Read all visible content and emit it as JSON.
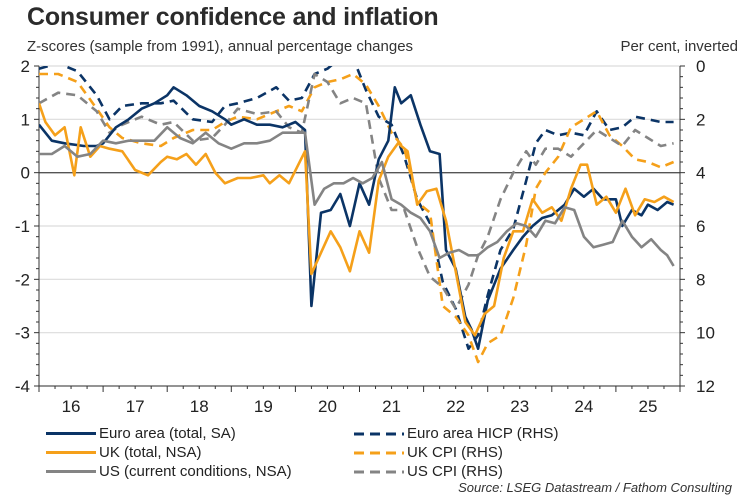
{
  "header": {
    "title": "Consumer confidence and inflation",
    "subtitle": "Z-scores (sample from 1991), annual percentage changes",
    "rhs_label": "Per cent, inverted"
  },
  "source": "Source: LSEG Datastream / Fathom Consulting",
  "colors": {
    "euro": "#0b3466",
    "uk": "#f5a01a",
    "us": "#848484",
    "axis": "#333333",
    "grid": "#dcdcdc"
  },
  "chart_data": {
    "type": "line",
    "title": "Consumer confidence and inflation",
    "subtitle": "Z-scores (sample from 1991), annual percentage changes",
    "xlabel": "",
    "ylabel_left": "Z-score",
    "ylabel_right": "Per cent, inverted",
    "x_range": [
      2016.0,
      2026.0
    ],
    "x_ticks": [
      {
        "value": 2016.5,
        "label": "16"
      },
      {
        "value": 2017.5,
        "label": "17"
      },
      {
        "value": 2018.5,
        "label": "18"
      },
      {
        "value": 2019.5,
        "label": "19"
      },
      {
        "value": 2020.5,
        "label": "20"
      },
      {
        "value": 2021.5,
        "label": "21"
      },
      {
        "value": 2022.5,
        "label": "22"
      },
      {
        "value": 2023.5,
        "label": "23"
      },
      {
        "value": 2024.5,
        "label": "24"
      },
      {
        "value": 2025.5,
        "label": "25"
      }
    ],
    "ylim_left": [
      -4,
      2
    ],
    "y_ticks_left": [
      "-4",
      "-3",
      "-2",
      "-1",
      "0",
      "1",
      "2"
    ],
    "ylim_right": [
      12,
      0
    ],
    "y_ticks_right": [
      "12",
      "10",
      "8",
      "6",
      "4",
      "2",
      "0"
    ],
    "right_axis_inverted": true,
    "grid": true,
    "legend_position": "bottom",
    "series": [
      {
        "name": "Euro area (total, SA)",
        "axis": "left",
        "style": "solid",
        "color_key": "euro",
        "x": [
          2016.0,
          2016.2,
          2016.4,
          2016.7,
          2016.9,
          2017.0,
          2017.2,
          2017.4,
          2017.6,
          2017.8,
          2018.0,
          2018.1,
          2018.3,
          2018.5,
          2018.7,
          2018.9,
          2019.0,
          2019.2,
          2019.4,
          2019.6,
          2019.8,
          2020.0,
          2020.15,
          2020.25,
          2020.4,
          2020.55,
          2020.7,
          2020.85,
          2021.0,
          2021.15,
          2021.3,
          2021.45,
          2021.55,
          2021.65,
          2021.8,
          2021.95,
          2022.1,
          2022.25,
          2022.35,
          2022.5,
          2022.65,
          2022.75,
          2022.85,
          2023.0,
          2023.2,
          2023.4,
          2023.55,
          2023.7,
          2023.85,
          2024.0,
          2024.2,
          2024.35,
          2024.5,
          2024.65,
          2024.8,
          2025.0,
          2025.1,
          2025.25,
          2025.4,
          2025.5,
          2025.65,
          2025.8,
          2025.9
        ],
        "values": [
          0.9,
          0.6,
          0.55,
          0.5,
          0.5,
          0.55,
          0.85,
          1.0,
          1.2,
          1.3,
          1.45,
          1.6,
          1.45,
          1.25,
          1.15,
          1.0,
          0.9,
          1.0,
          0.9,
          0.9,
          0.85,
          0.95,
          0.8,
          -2.5,
          -0.75,
          -0.7,
          -0.4,
          -1.0,
          -0.2,
          -0.6,
          0.25,
          0.6,
          1.6,
          1.3,
          1.45,
          0.9,
          0.4,
          0.35,
          -1.45,
          -1.8,
          -2.7,
          -2.95,
          -3.3,
          -2.4,
          -1.8,
          -1.45,
          -1.2,
          -1.0,
          -0.85,
          -0.8,
          -0.6,
          -0.3,
          -0.45,
          -0.3,
          -0.5,
          -0.5,
          -1.0,
          -0.7,
          -0.8,
          -0.6,
          -0.7,
          -0.55,
          -0.6
        ]
      },
      {
        "name": "UK (total, NSA)",
        "axis": "left",
        "style": "solid",
        "color_key": "uk",
        "x": [
          2016.0,
          2016.1,
          2016.25,
          2016.4,
          2016.55,
          2016.65,
          2016.8,
          2016.95,
          2017.1,
          2017.3,
          2017.5,
          2017.7,
          2017.9,
          2018.0,
          2018.15,
          2018.3,
          2018.45,
          2018.6,
          2018.75,
          2018.9,
          2019.1,
          2019.3,
          2019.5,
          2019.6,
          2019.75,
          2019.9,
          2020.15,
          2020.25,
          2020.4,
          2020.55,
          2020.7,
          2020.85,
          2021.0,
          2021.15,
          2021.3,
          2021.45,
          2021.6,
          2021.75,
          2021.9,
          2022.05,
          2022.2,
          2022.35,
          2022.5,
          2022.65,
          2022.8,
          2022.95,
          2023.1,
          2023.25,
          2023.4,
          2023.55,
          2023.7,
          2023.85,
          2024.0,
          2024.15,
          2024.3,
          2024.45,
          2024.55,
          2024.7,
          2024.85,
          2025.0,
          2025.15,
          2025.3,
          2025.45,
          2025.6,
          2025.75,
          2025.9
        ],
        "values": [
          1.3,
          0.95,
          0.7,
          0.85,
          -0.05,
          0.85,
          0.3,
          0.5,
          0.45,
          0.4,
          0.05,
          -0.05,
          0.2,
          0.3,
          0.25,
          0.35,
          0.15,
          0.35,
          0.0,
          -0.2,
          -0.1,
          -0.1,
          -0.05,
          -0.2,
          -0.05,
          -0.2,
          0.4,
          -1.9,
          -1.5,
          -1.1,
          -1.4,
          -1.85,
          -1.1,
          -1.5,
          -0.15,
          0.3,
          0.55,
          0.4,
          -0.6,
          -0.35,
          -0.3,
          -0.9,
          -1.85,
          -2.8,
          -3.05,
          -2.65,
          -2.5,
          -1.6,
          -1.1,
          -1.1,
          -0.5,
          -0.75,
          -0.65,
          -0.9,
          -0.3,
          0.15,
          0.15,
          -0.6,
          -0.45,
          -0.75,
          -0.3,
          -0.8,
          -0.5,
          -0.55,
          -0.45,
          -0.55
        ]
      },
      {
        "name": "US (current conditions, NSA)",
        "axis": "left",
        "style": "solid",
        "color_key": "us",
        "x": [
          2016.0,
          2016.2,
          2016.4,
          2016.6,
          2016.8,
          2017.0,
          2017.2,
          2017.4,
          2017.6,
          2017.8,
          2018.0,
          2018.2,
          2018.4,
          2018.6,
          2018.8,
          2019.0,
          2019.2,
          2019.4,
          2019.6,
          2019.8,
          2020.0,
          2020.15,
          2020.3,
          2020.45,
          2020.6,
          2020.75,
          2020.9,
          2021.05,
          2021.2,
          2021.35,
          2021.5,
          2021.65,
          2021.8,
          2021.95,
          2022.1,
          2022.25,
          2022.4,
          2022.55,
          2022.7,
          2022.85,
          2023.0,
          2023.15,
          2023.3,
          2023.45,
          2023.6,
          2023.75,
          2023.9,
          2024.05,
          2024.2,
          2024.35,
          2024.5,
          2024.65,
          2024.8,
          2024.95,
          2025.1,
          2025.25,
          2025.4,
          2025.55,
          2025.7,
          2025.8,
          2025.9
        ],
        "values": [
          0.35,
          0.35,
          0.5,
          0.3,
          0.35,
          0.6,
          0.55,
          0.6,
          0.6,
          0.6,
          0.85,
          0.65,
          0.55,
          0.75,
          0.55,
          0.45,
          0.55,
          0.55,
          0.6,
          0.75,
          0.75,
          0.75,
          -0.6,
          -0.3,
          -0.2,
          -0.2,
          -0.1,
          -0.2,
          -0.1,
          0.2,
          -0.5,
          -0.6,
          -0.75,
          -0.85,
          -1.1,
          -1.6,
          -1.5,
          -1.45,
          -1.55,
          -1.55,
          -1.4,
          -1.3,
          -1.1,
          -0.95,
          -1.0,
          -1.2,
          -0.9,
          -0.95,
          -0.65,
          -0.7,
          -1.2,
          -1.4,
          -1.35,
          -1.3,
          -0.9,
          -1.2,
          -1.4,
          -1.25,
          -1.45,
          -1.55,
          -1.75
        ]
      },
      {
        "name": "Euro area HICP (RHS)",
        "axis": "right",
        "style": "dashed",
        "color_key": "euro",
        "x": [
          2016.0,
          2016.3,
          2016.6,
          2016.9,
          2017.1,
          2017.3,
          2017.6,
          2017.9,
          2018.1,
          2018.4,
          2018.7,
          2018.9,
          2019.1,
          2019.4,
          2019.7,
          2019.9,
          2020.1,
          2020.3,
          2020.5,
          2020.7,
          2020.9,
          2021.1,
          2021.3,
          2021.5,
          2021.7,
          2021.9,
          2022.1,
          2022.3,
          2022.5,
          2022.7,
          2022.85,
          2023.0,
          2023.2,
          2023.4,
          2023.6,
          2023.75,
          2023.9,
          2024.1,
          2024.3,
          2024.5,
          2024.7,
          2024.9,
          2025.1,
          2025.3,
          2025.5,
          2025.7,
          2025.9
        ],
        "values": [
          0.1,
          -0.1,
          0.2,
          1.1,
          2.0,
          1.5,
          1.4,
          1.4,
          1.3,
          2.0,
          2.1,
          1.5,
          1.4,
          1.2,
          0.8,
          1.3,
          1.2,
          0.3,
          0.1,
          -0.3,
          -0.3,
          0.9,
          1.9,
          2.2,
          3.4,
          5.0,
          5.9,
          8.1,
          9.1,
          10.6,
          10.1,
          8.6,
          6.9,
          6.1,
          4.3,
          2.9,
          2.4,
          2.6,
          2.5,
          2.6,
          1.7,
          2.4,
          2.3,
          1.9,
          2.0,
          2.1,
          2.1
        ]
      },
      {
        "name": "UK CPI (RHS)",
        "axis": "right",
        "style": "dashed",
        "color_key": "uk",
        "x": [
          2016.0,
          2016.3,
          2016.6,
          2016.9,
          2017.1,
          2017.3,
          2017.6,
          2017.9,
          2018.1,
          2018.4,
          2018.7,
          2018.9,
          2019.1,
          2019.4,
          2019.7,
          2019.9,
          2020.1,
          2020.3,
          2020.5,
          2020.7,
          2020.9,
          2021.1,
          2021.3,
          2021.5,
          2021.7,
          2021.9,
          2022.1,
          2022.3,
          2022.5,
          2022.7,
          2022.85,
          2023.0,
          2023.2,
          2023.4,
          2023.6,
          2023.75,
          2023.9,
          2024.1,
          2024.3,
          2024.5,
          2024.7,
          2024.9,
          2025.1,
          2025.3,
          2025.5,
          2025.7,
          2025.9
        ],
        "values": [
          0.3,
          0.3,
          0.6,
          1.6,
          2.3,
          2.7,
          2.9,
          3.0,
          2.7,
          2.4,
          2.4,
          2.1,
          1.9,
          2.0,
          1.7,
          1.5,
          1.7,
          0.8,
          0.6,
          0.5,
          0.3,
          0.7,
          1.5,
          2.5,
          3.1,
          5.1,
          5.5,
          9.0,
          9.4,
          10.1,
          11.1,
          10.4,
          10.1,
          8.7,
          6.7,
          4.6,
          4.0,
          3.4,
          2.3,
          2.0,
          1.7,
          2.6,
          3.0,
          3.5,
          3.6,
          3.8,
          3.6
        ]
      },
      {
        "name": "US CPI (RHS)",
        "axis": "right",
        "style": "dashed",
        "color_key": "us",
        "x": [
          2016.0,
          2016.3,
          2016.6,
          2016.9,
          2017.1,
          2017.3,
          2017.6,
          2017.9,
          2018.1,
          2018.4,
          2018.7,
          2018.9,
          2019.1,
          2019.4,
          2019.7,
          2019.9,
          2020.1,
          2020.3,
          2020.5,
          2020.7,
          2020.9,
          2021.1,
          2021.3,
          2021.5,
          2021.7,
          2021.9,
          2022.1,
          2022.3,
          2022.5,
          2022.7,
          2022.85,
          2023.0,
          2023.2,
          2023.4,
          2023.6,
          2023.75,
          2023.9,
          2024.1,
          2024.3,
          2024.5,
          2024.7,
          2024.9,
          2025.1,
          2025.3,
          2025.5,
          2025.7,
          2025.9
        ],
        "values": [
          1.4,
          1.0,
          1.1,
          1.7,
          2.5,
          2.2,
          1.9,
          2.2,
          2.1,
          2.8,
          2.7,
          2.2,
          1.6,
          1.8,
          1.7,
          2.3,
          2.5,
          0.3,
          0.6,
          1.4,
          1.2,
          1.4,
          4.2,
          5.4,
          5.4,
          6.8,
          7.9,
          8.3,
          9.1,
          8.2,
          7.1,
          6.4,
          5.0,
          4.0,
          3.2,
          3.7,
          3.1,
          3.1,
          3.4,
          2.9,
          2.4,
          2.7,
          3.0,
          2.4,
          2.7,
          3.0,
          2.9
        ]
      }
    ]
  },
  "legend": {
    "items": [
      {
        "label": "Euro area (total, SA)",
        "style": "solid",
        "color_key": "euro"
      },
      {
        "label": "UK (total, NSA)",
        "style": "solid",
        "color_key": "uk"
      },
      {
        "label": "US (current conditions, NSA)",
        "style": "solid",
        "color_key": "us"
      },
      {
        "label": "Euro area HICP (RHS)",
        "style": "dashed",
        "color_key": "euro"
      },
      {
        "label": "UK CPI (RHS)",
        "style": "dashed",
        "color_key": "uk"
      },
      {
        "label": "US CPI (RHS)",
        "style": "dashed",
        "color_key": "us"
      }
    ]
  }
}
